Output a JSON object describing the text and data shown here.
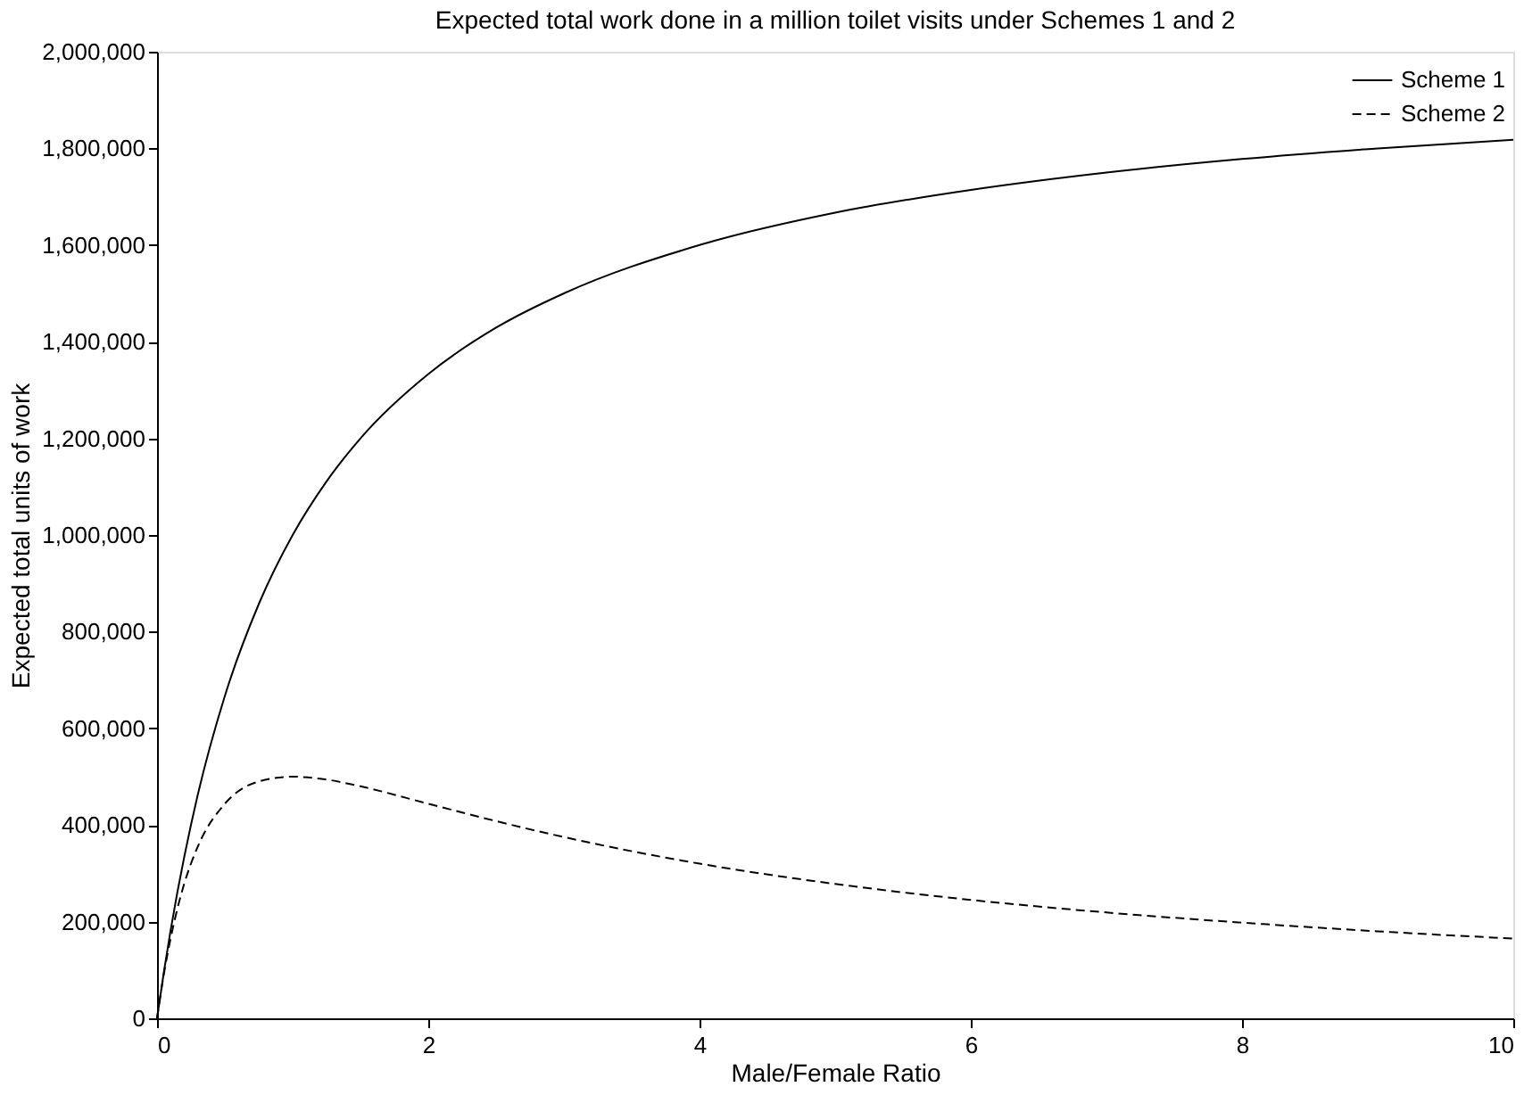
{
  "chart_data": {
    "type": "line",
    "title": "Expected total work done in a million toilet visits under Schemes 1 and 2",
    "xlabel": "Male/Female Ratio",
    "ylabel": "Expected total units of work",
    "x": [
      0,
      0.05,
      0.1,
      0.15,
      0.2,
      0.3,
      0.5,
      0.75,
      1,
      1.25,
      1.5,
      2,
      2.5,
      3,
      4,
      5,
      6,
      7,
      8,
      9,
      10
    ],
    "series": [
      {
        "name": "Scheme 1",
        "color": "#000000",
        "line_style": "solid",
        "values": [
          0,
          95000,
          182000,
          261000,
          333000,
          462000,
          667000,
          857000,
          1000000,
          1111000,
          1200000,
          1333000,
          1429000,
          1500000,
          1600000,
          1667000,
          1714000,
          1750000,
          1778000,
          1800000,
          1818000
        ]
      },
      {
        "name": "Scheme 2",
        "color": "#000000",
        "line_style": "dashed",
        "values": [
          0,
          91000,
          165000,
          227000,
          278000,
          355000,
          444000,
          490000,
          500000,
          494000,
          480000,
          444000,
          408000,
          375000,
          320000,
          278000,
          245000,
          219000,
          198000,
          180000,
          165000
        ]
      }
    ],
    "xlim": [
      0,
      10
    ],
    "xticks": [
      0,
      2,
      4,
      6,
      8,
      10
    ],
    "ylim": [
      0,
      2000000
    ],
    "yticks": [
      {
        "value": 0,
        "label": "0"
      },
      {
        "value": 200000,
        "label": "200,000"
      },
      {
        "value": 400000,
        "label": "400,000"
      },
      {
        "value": 600000,
        "label": "600,000"
      },
      {
        "value": 800000,
        "label": "800,000"
      },
      {
        "value": 1000000,
        "label": "1,000,000"
      },
      {
        "value": 1200000,
        "label": "1,200,000"
      },
      {
        "value": 1400000,
        "label": "1,400,000"
      },
      {
        "value": 1600000,
        "label": "1,600,000"
      },
      {
        "value": 1800000,
        "label": "1,800,000"
      },
      {
        "value": 2000000,
        "label": "2,000,000"
      }
    ],
    "grid": false,
    "legend": "top right",
    "marker": "none"
  }
}
